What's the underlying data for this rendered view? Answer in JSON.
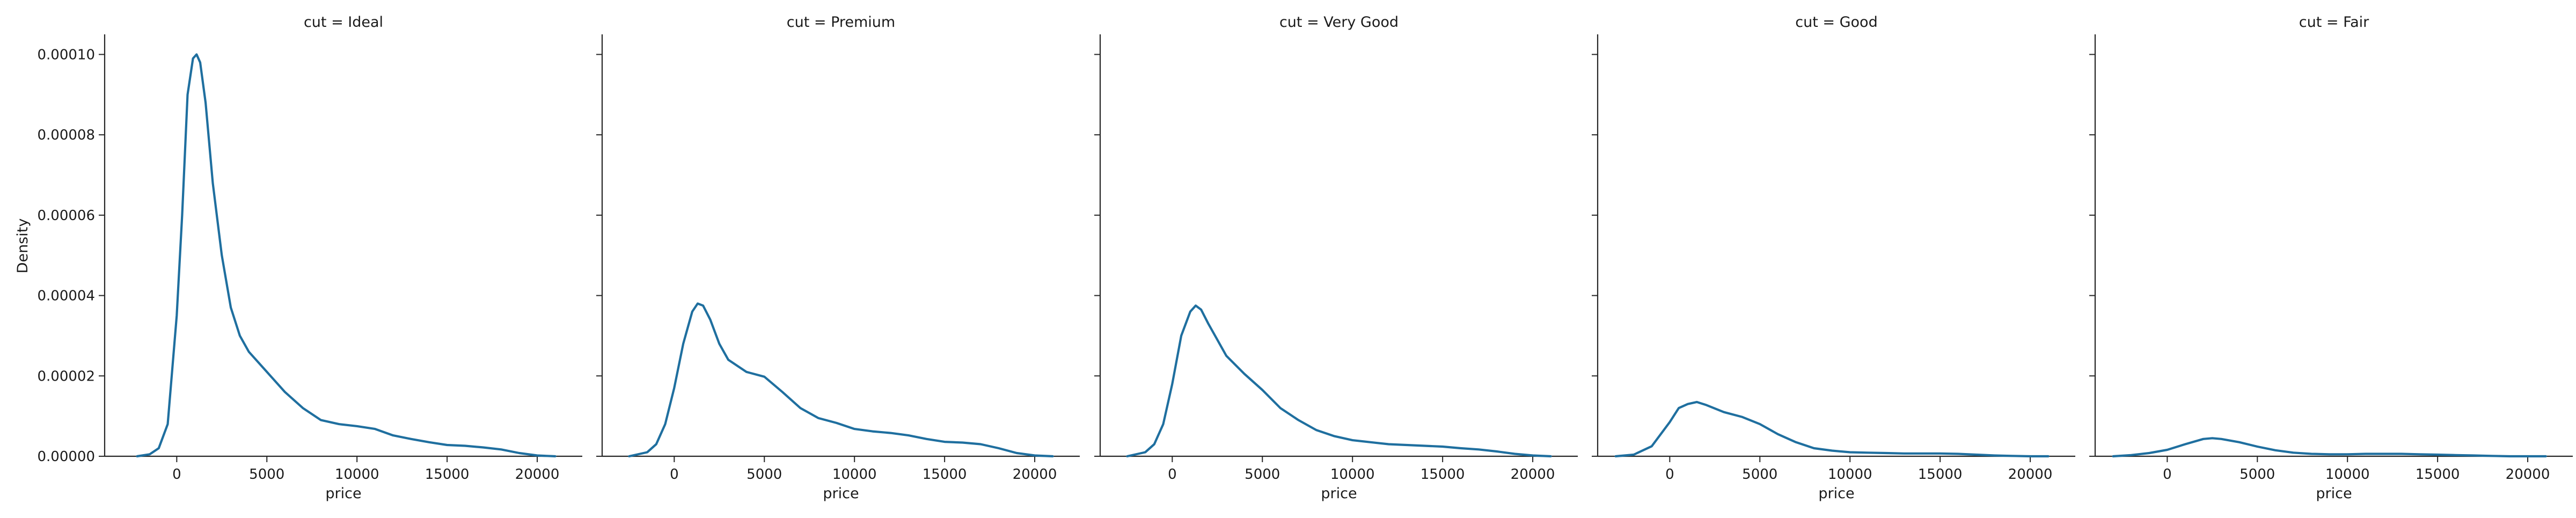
{
  "chart_data": {
    "type": "line",
    "ylabel": "Density",
    "xlabel": "price",
    "xlim": [
      -4000,
      22500
    ],
    "ylim": [
      0,
      0.000105
    ],
    "x_ticks": [
      0,
      5000,
      10000,
      15000,
      20000
    ],
    "y_ticks": [
      {
        "value": 0,
        "label": "0.00000"
      },
      {
        "value": 2e-05,
        "label": "0.00002"
      },
      {
        "value": 4e-05,
        "label": "0.00004"
      },
      {
        "value": 6e-05,
        "label": "0.00006"
      },
      {
        "value": 8e-05,
        "label": "0.00008"
      },
      {
        "value": 0.0001,
        "label": "0.00010"
      }
    ],
    "grid": false,
    "line_color": "#1f6f9f",
    "panels": [
      {
        "title": "cut = Ideal",
        "x": [
          -2200,
          -1500,
          -1000,
          -500,
          0,
          300,
          600,
          900,
          1100,
          1300,
          1600,
          2000,
          2500,
          3000,
          3500,
          4000,
          5000,
          6000,
          7000,
          8000,
          9000,
          10000,
          11000,
          12000,
          13000,
          14000,
          15000,
          16000,
          17000,
          18000,
          19000,
          20000,
          21000
        ],
        "y": [
          0,
          5e-07,
          2e-06,
          8e-06,
          3.5e-05,
          6e-05,
          9e-05,
          9.9e-05,
          0.0001,
          9.8e-05,
          8.8e-05,
          6.8e-05,
          5e-05,
          3.7e-05,
          3e-05,
          2.6e-05,
          2.1e-05,
          1.6e-05,
          1.2e-05,
          9e-06,
          8e-06,
          7.5e-06,
          6.8e-06,
          5.2e-06,
          4.3e-06,
          3.5e-06,
          2.8e-06,
          2.6e-06,
          2.2e-06,
          1.7e-06,
          8e-07,
          2e-07,
          0
        ]
      },
      {
        "title": "cut = Premium",
        "x": [
          -2500,
          -1500,
          -1000,
          -500,
          0,
          500,
          1000,
          1300,
          1600,
          2000,
          2500,
          3000,
          4000,
          5000,
          6000,
          7000,
          8000,
          9000,
          10000,
          11000,
          12000,
          13000,
          14000,
          15000,
          16000,
          17000,
          18000,
          19000,
          20000,
          21000
        ],
        "y": [
          0,
          1e-06,
          3e-06,
          8e-06,
          1.7e-05,
          2.8e-05,
          3.6e-05,
          3.8e-05,
          3.75e-05,
          3.4e-05,
          2.8e-05,
          2.4e-05,
          2.1e-05,
          1.98e-05,
          1.6e-05,
          1.2e-05,
          9.5e-06,
          8.3e-06,
          6.8e-06,
          6.2e-06,
          5.8e-06,
          5.2e-06,
          4.3e-06,
          3.6e-06,
          3.4e-06,
          3e-06,
          2e-06,
          8e-07,
          2e-07,
          0
        ]
      },
      {
        "title": "cut = Very Good",
        "x": [
          -2500,
          -1500,
          -1000,
          -500,
          0,
          500,
          1000,
          1300,
          1600,
          2000,
          2500,
          3000,
          4000,
          5000,
          6000,
          7000,
          8000,
          9000,
          10000,
          11000,
          12000,
          13000,
          14000,
          15000,
          16000,
          17000,
          18000,
          19000,
          20000,
          21000
        ],
        "y": [
          0,
          1e-06,
          3e-06,
          8e-06,
          1.8e-05,
          3e-05,
          3.6e-05,
          3.75e-05,
          3.65e-05,
          3.3e-05,
          2.9e-05,
          2.5e-05,
          2.05e-05,
          1.65e-05,
          1.2e-05,
          9e-06,
          6.5e-06,
          5e-06,
          4e-06,
          3.5e-06,
          3e-06,
          2.8e-06,
          2.6e-06,
          2.4e-06,
          2e-06,
          1.7e-06,
          1.2e-06,
          6e-07,
          2e-07,
          0
        ]
      },
      {
        "title": "cut = Good",
        "x": [
          -3000,
          -2000,
          -1000,
          0,
          500,
          1000,
          1500,
          2000,
          3000,
          4000,
          5000,
          6000,
          7000,
          8000,
          9000,
          10000,
          11000,
          12000,
          13000,
          14000,
          15000,
          16000,
          17000,
          18000,
          19000,
          20000,
          21000
        ],
        "y": [
          0,
          4e-07,
          2.5e-06,
          8.5e-06,
          1.2e-05,
          1.3e-05,
          1.35e-05,
          1.28e-05,
          1.1e-05,
          9.8e-06,
          8e-06,
          5.5e-06,
          3.5e-06,
          2e-06,
          1.4e-06,
          1e-06,
          9e-07,
          8e-07,
          7e-07,
          7e-07,
          7e-07,
          6e-07,
          4e-07,
          2e-07,
          1e-07,
          0,
          0
        ]
      },
      {
        "title": "cut = Fair",
        "x": [
          -3000,
          -2000,
          -1000,
          0,
          1000,
          2000,
          2500,
          3000,
          4000,
          5000,
          6000,
          7000,
          8000,
          9000,
          10000,
          11000,
          12000,
          13000,
          14000,
          15000,
          16000,
          17000,
          18000,
          19000,
          20000,
          21000
        ],
        "y": [
          0,
          3e-07,
          8e-07,
          1.6e-06,
          3e-06,
          4.3e-06,
          4.5e-06,
          4.3e-06,
          3.5e-06,
          2.4e-06,
          1.5e-06,
          9e-07,
          6e-07,
          5e-07,
          5e-07,
          6e-07,
          6e-07,
          6e-07,
          5e-07,
          4e-07,
          3e-07,
          2e-07,
          1e-07,
          0,
          0,
          0
        ]
      }
    ]
  }
}
